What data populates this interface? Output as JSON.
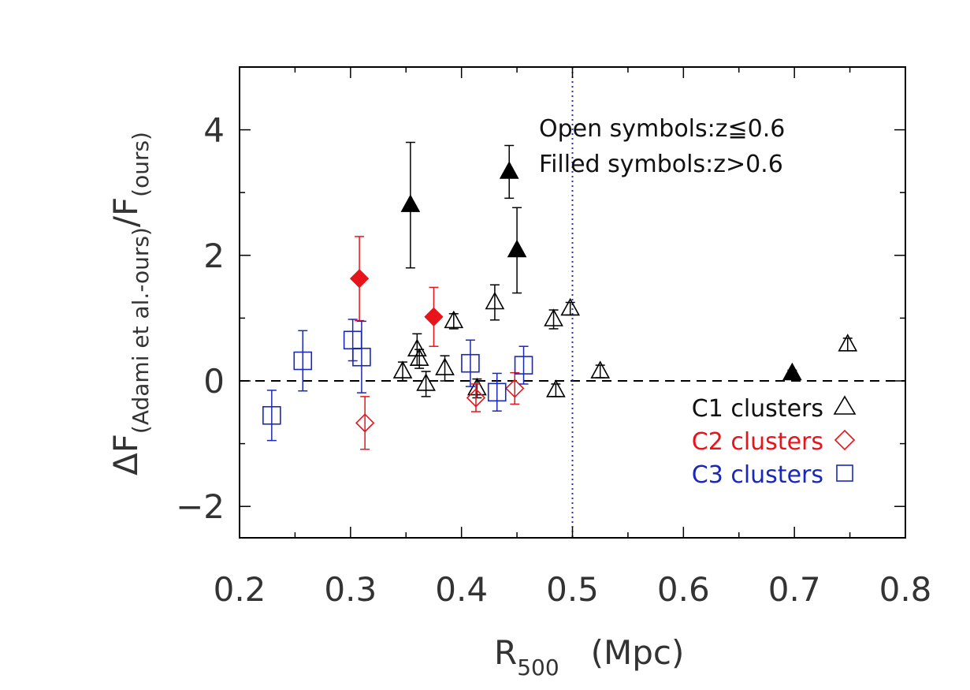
{
  "chart_data": {
    "type": "scatter",
    "title": "",
    "xlabel": "R",
    "xlabel_sub": "500",
    "xlabel_unit": "(Mpc)",
    "ylabel": "ΔF",
    "ylabel_sub": "(Adami et al.-ours)",
    "ylabel_slash": "/F",
    "ylabel_sub2": "(ours)",
    "xlim": [
      0.2,
      0.8
    ],
    "ylim": [
      -2.5,
      5.0
    ],
    "x_ticks": [
      0.2,
      0.3,
      0.4,
      0.5,
      0.6,
      0.7,
      0.8
    ],
    "x_tick_labels": [
      "0.2",
      "0.3",
      "0.4",
      "0.5",
      "0.6",
      "0.7",
      "0.8"
    ],
    "y_ticks": [
      -2,
      0,
      2,
      4
    ],
    "y_tick_labels": [
      "−2",
      "0",
      "2",
      "4"
    ],
    "hline": 0,
    "vline": 0.5,
    "annotations": [
      "Open symbols:z≦0.6",
      "Filled symbols:z>0.6"
    ],
    "legend_position": "bottom-right",
    "series": [
      {
        "name": "C1 clusters",
        "legend_label": "C1 clusters",
        "marker": "triangle",
        "color": "#000000",
        "points": [
          {
            "x": 0.347,
            "y": 0.15,
            "err": 0.15,
            "filled": false
          },
          {
            "x": 0.36,
            "y": 0.5,
            "err": 0.25,
            "filled": false
          },
          {
            "x": 0.362,
            "y": 0.35,
            "err": 0.15,
            "filled": false
          },
          {
            "x": 0.368,
            "y": -0.05,
            "err": 0.2,
            "filled": false
          },
          {
            "x": 0.385,
            "y": 0.2,
            "err": 0.2,
            "filled": false
          },
          {
            "x": 0.393,
            "y": 0.95,
            "err": 0.12,
            "filled": false
          },
          {
            "x": 0.414,
            "y": -0.12,
            "err": 0.15,
            "filled": false
          },
          {
            "x": 0.43,
            "y": 1.25,
            "err": 0.28,
            "filled": false
          },
          {
            "x": 0.483,
            "y": 0.98,
            "err": 0.15,
            "filled": false
          },
          {
            "x": 0.485,
            "y": -0.15,
            "err": 0.1,
            "filled": false
          },
          {
            "x": 0.498,
            "y": 1.15,
            "err": 0.1,
            "filled": false
          },
          {
            "x": 0.525,
            "y": 0.15,
            "err": 0.1,
            "filled": false
          },
          {
            "x": 0.748,
            "y": 0.58,
            "err": 0.1,
            "filled": false
          },
          {
            "x": 0.354,
            "y": 2.8,
            "err": 1.0,
            "filled": true
          },
          {
            "x": 0.443,
            "y": 3.33,
            "err": 0.42,
            "filled": true
          },
          {
            "x": 0.45,
            "y": 2.08,
            "err": 0.68,
            "filled": true
          },
          {
            "x": 0.698,
            "y": 0.12,
            "err": 0.05,
            "filled": true
          }
        ]
      },
      {
        "name": "C2 clusters",
        "legend_label": "C2 clusters",
        "marker": "diamond",
        "color": "#e8141c",
        "points": [
          {
            "x": 0.313,
            "y": -0.67,
            "err": 0.42,
            "filled": false
          },
          {
            "x": 0.413,
            "y": -0.27,
            "err": 0.22,
            "filled": false
          },
          {
            "x": 0.448,
            "y": -0.12,
            "err": 0.25,
            "filled": false
          },
          {
            "x": 0.308,
            "y": 1.63,
            "err": 0.67,
            "filled": true
          },
          {
            "x": 0.375,
            "y": 1.02,
            "err": 0.47,
            "filled": true
          }
        ]
      },
      {
        "name": "C3 clusters",
        "legend_label": "C3 clusters",
        "marker": "square",
        "color": "#1a28b8",
        "points": [
          {
            "x": 0.229,
            "y": -0.55,
            "err": 0.4,
            "filled": false
          },
          {
            "x": 0.257,
            "y": 0.32,
            "err": 0.48,
            "filled": false
          },
          {
            "x": 0.302,
            "y": 0.65,
            "err": 0.33,
            "filled": false
          },
          {
            "x": 0.31,
            "y": 0.38,
            "err": 0.57,
            "filled": false
          },
          {
            "x": 0.408,
            "y": 0.28,
            "err": 0.37,
            "filled": false
          },
          {
            "x": 0.432,
            "y": -0.18,
            "err": 0.3,
            "filled": false
          },
          {
            "x": 0.456,
            "y": 0.25,
            "err": 0.3,
            "filled": false
          }
        ]
      }
    ]
  }
}
